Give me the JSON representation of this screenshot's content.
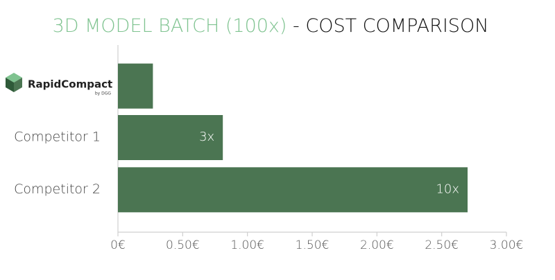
{
  "chart_data": {
    "type": "hbar",
    "title_parts": [
      {
        "text": "3D MODEL BATCH (100x)",
        "color": "#7fc390"
      },
      {
        "text": " - COST COMPARISON",
        "color": "#111111"
      }
    ],
    "categories": [
      "RapidCompact",
      "Competitor 1",
      "Competitor 2"
    ],
    "logo_subtitle": "by DGG",
    "values": [
      0.27,
      0.81,
      2.7
    ],
    "bar_notes": [
      null,
      "3x",
      "10x"
    ],
    "color": "#4b7552",
    "xlim": [
      0,
      3
    ],
    "xticks": [
      {
        "value": 0,
        "label": "0€"
      },
      {
        "value": 0.5,
        "label": "0.50€"
      },
      {
        "value": 1,
        "label": "1.00€"
      },
      {
        "value": 1.5,
        "label": "1.50€"
      },
      {
        "value": 2,
        "label": "2.00€"
      },
      {
        "value": 2.5,
        "label": "2.50€"
      },
      {
        "value": 3,
        "label": "3.00€"
      }
    ],
    "grid": false
  }
}
